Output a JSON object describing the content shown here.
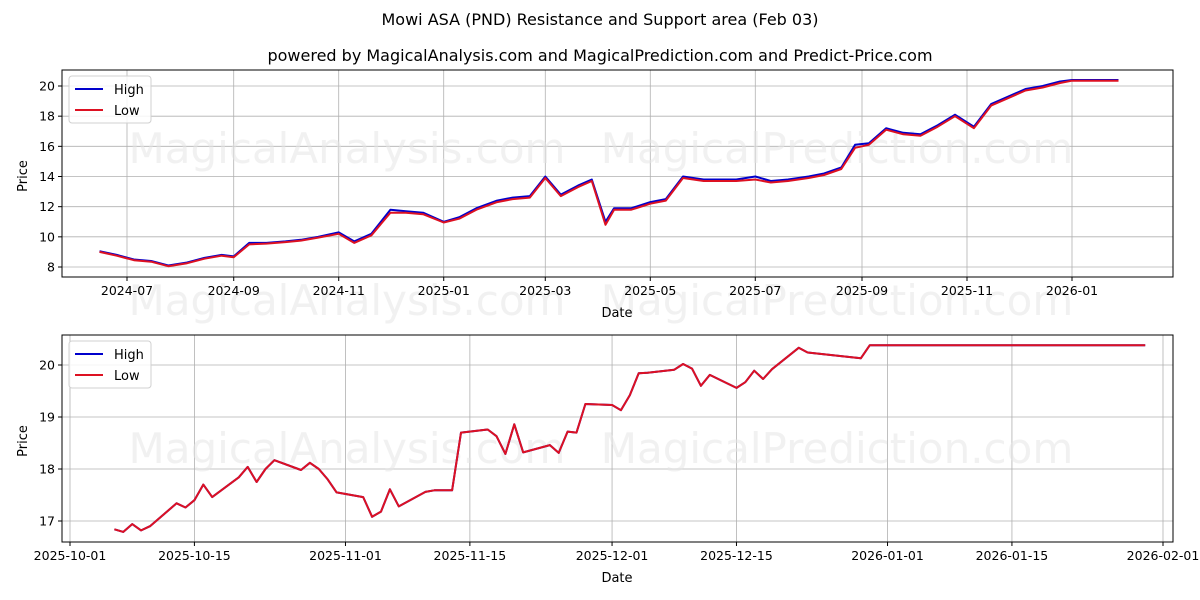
{
  "header": {
    "title": "Mowi ASA (PND) Resistance and Support area (Feb 03)",
    "subtitle": "powered by MagicalAnalysis.com and MagicalPrediction.com and Predict-Price.com"
  },
  "watermarks": [
    "MagicalAnalysis.com",
    "MagicalPrediction.com"
  ],
  "colors": {
    "high": "#0000cc",
    "low": "#dd1122",
    "grid": "#b0b0b0"
  },
  "chart_data": [
    {
      "type": "line",
      "title": "Mowi ASA (PND) Resistance and Support area (Feb 03)",
      "xlabel": "Date",
      "ylabel": "Price",
      "ylim": [
        7.3,
        21.0
      ],
      "grid": true,
      "legend_position": "upper left",
      "legend": [
        "High",
        "Low"
      ],
      "x_tick_labels": [
        "2024-07",
        "2024-09",
        "2024-11",
        "2025-01",
        "2025-03",
        "2025-05",
        "2025-07",
        "2025-09",
        "2025-11",
        "2026-01"
      ],
      "y_tick_labels": [
        "8",
        "10",
        "12",
        "14",
        "16",
        "18",
        "20"
      ],
      "x": [
        "2024-06-15",
        "2024-06-25",
        "2024-07-05",
        "2024-07-15",
        "2024-07-25",
        "2024-08-05",
        "2024-08-15",
        "2024-08-25",
        "2024-09-01",
        "2024-09-10",
        "2024-09-20",
        "2024-10-01",
        "2024-10-10",
        "2024-10-20",
        "2024-11-01",
        "2024-11-10",
        "2024-11-20",
        "2024-12-01",
        "2024-12-10",
        "2024-12-20",
        "2025-01-01",
        "2025-01-10",
        "2025-01-20",
        "2025-02-01",
        "2025-02-10",
        "2025-02-20",
        "2025-03-01",
        "2025-03-10",
        "2025-03-20",
        "2025-03-28",
        "2025-04-05",
        "2025-04-10",
        "2025-04-20",
        "2025-05-01",
        "2025-05-10",
        "2025-05-20",
        "2025-06-01",
        "2025-06-10",
        "2025-06-20",
        "2025-07-01",
        "2025-07-10",
        "2025-07-20",
        "2025-08-01",
        "2025-08-10",
        "2025-08-20",
        "2025-08-28",
        "2025-09-05",
        "2025-09-15",
        "2025-09-25",
        "2025-10-05",
        "2025-10-15",
        "2025-10-25",
        "2025-11-05",
        "2025-11-15",
        "2025-11-25",
        "2025-12-05",
        "2025-12-15",
        "2025-12-25",
        "2026-01-01",
        "2026-01-15",
        "2026-01-28"
      ],
      "series": [
        {
          "name": "High",
          "color": "#0000cc",
          "values": [
            9.05,
            8.8,
            8.5,
            8.4,
            8.1,
            8.3,
            8.6,
            8.8,
            8.7,
            9.6,
            9.6,
            9.7,
            9.8,
            10.0,
            10.3,
            9.7,
            10.2,
            11.8,
            11.7,
            11.6,
            11.0,
            11.3,
            11.9,
            12.4,
            12.6,
            12.7,
            14.0,
            12.8,
            13.4,
            13.8,
            11.0,
            11.9,
            11.9,
            12.3,
            12.5,
            14.0,
            13.8,
            13.8,
            13.8,
            14.0,
            13.7,
            13.8,
            14.0,
            14.2,
            14.6,
            16.1,
            16.2,
            17.2,
            16.9,
            16.8,
            17.4,
            18.1,
            17.3,
            18.8,
            19.3,
            19.8,
            20.0,
            20.3,
            20.4,
            20.4,
            20.4
          ]
        },
        {
          "name": "Low",
          "color": "#dd1122",
          "values": [
            9.0,
            8.75,
            8.45,
            8.35,
            8.05,
            8.25,
            8.55,
            8.75,
            8.65,
            9.5,
            9.55,
            9.65,
            9.75,
            9.95,
            10.2,
            9.6,
            10.1,
            11.6,
            11.6,
            11.5,
            10.95,
            11.2,
            11.8,
            12.3,
            12.5,
            12.6,
            13.9,
            12.7,
            13.3,
            13.7,
            10.8,
            11.8,
            11.8,
            12.2,
            12.4,
            13.9,
            13.7,
            13.7,
            13.7,
            13.8,
            13.6,
            13.7,
            13.9,
            14.1,
            14.5,
            15.9,
            16.1,
            17.1,
            16.8,
            16.7,
            17.3,
            18.0,
            17.2,
            18.7,
            19.2,
            19.7,
            19.9,
            20.2,
            20.35,
            20.35,
            20.35
          ]
        }
      ]
    },
    {
      "type": "line",
      "xlabel": "Date",
      "ylabel": "Price",
      "ylim": [
        16.6,
        20.55
      ],
      "grid": true,
      "legend_position": "upper left",
      "legend": [
        "High",
        "Low"
      ],
      "x_tick_labels": [
        "2025-10-01",
        "2025-10-15",
        "2025-11-01",
        "2025-11-15",
        "2025-12-01",
        "2025-12-15",
        "2026-01-01",
        "2026-01-15",
        "2026-02-01"
      ],
      "y_tick_labels": [
        "17",
        "18",
        "19",
        "20"
      ],
      "x": [
        "2025-10-06",
        "2025-10-07",
        "2025-10-08",
        "2025-10-09",
        "2025-10-10",
        "2025-10-13",
        "2025-10-14",
        "2025-10-15",
        "2025-10-16",
        "2025-10-17",
        "2025-10-20",
        "2025-10-21",
        "2025-10-22",
        "2025-10-23",
        "2025-10-24",
        "2025-10-27",
        "2025-10-28",
        "2025-10-29",
        "2025-10-30",
        "2025-10-31",
        "2025-11-03",
        "2025-11-04",
        "2025-11-05",
        "2025-11-06",
        "2025-11-07",
        "2025-11-10",
        "2025-11-11",
        "2025-11-12",
        "2025-11-13",
        "2025-11-14",
        "2025-11-17",
        "2025-11-18",
        "2025-11-19",
        "2025-11-20",
        "2025-11-21",
        "2025-11-24",
        "2025-11-25",
        "2025-11-26",
        "2025-11-27",
        "2025-11-28",
        "2025-12-01",
        "2025-12-02",
        "2025-12-03",
        "2025-12-04",
        "2025-12-05",
        "2025-12-08",
        "2025-12-09",
        "2025-12-10",
        "2025-12-11",
        "2025-12-12",
        "2025-12-15",
        "2025-12-16",
        "2025-12-17",
        "2025-12-18",
        "2025-12-19",
        "2025-12-22",
        "2025-12-23",
        "2025-12-29",
        "2025-12-30",
        "2026-01-30"
      ],
      "series": [
        {
          "name": "High",
          "color": "#0000cc",
          "values": [
            16.84,
            16.79,
            16.94,
            16.82,
            16.9,
            17.34,
            17.26,
            17.4,
            17.7,
            17.46,
            17.84,
            18.04,
            17.75,
            18.0,
            18.17,
            17.98,
            18.12,
            18.0,
            17.8,
            17.55,
            17.46,
            17.08,
            17.18,
            17.61,
            17.28,
            17.56,
            17.59,
            17.59,
            17.59,
            18.7,
            18.76,
            18.63,
            18.29,
            18.86,
            18.32,
            18.46,
            18.31,
            18.72,
            18.7,
            19.25,
            19.23,
            19.13,
            19.42,
            19.84,
            19.85,
            19.91,
            20.02,
            19.93,
            19.6,
            19.81,
            19.56,
            19.67,
            19.89,
            19.73,
            19.92,
            20.33,
            20.24,
            20.13,
            20.38,
            20.38
          ]
        },
        {
          "name": "Low",
          "color": "#dd1122",
          "values": [
            16.84,
            16.79,
            16.94,
            16.82,
            16.9,
            17.34,
            17.26,
            17.4,
            17.7,
            17.46,
            17.84,
            18.04,
            17.75,
            18.0,
            18.17,
            17.98,
            18.12,
            18.0,
            17.8,
            17.55,
            17.46,
            17.08,
            17.18,
            17.61,
            17.28,
            17.56,
            17.59,
            17.59,
            17.59,
            18.7,
            18.76,
            18.63,
            18.29,
            18.86,
            18.32,
            18.46,
            18.31,
            18.72,
            18.7,
            19.25,
            19.23,
            19.13,
            19.42,
            19.84,
            19.85,
            19.91,
            20.02,
            19.93,
            19.6,
            19.81,
            19.56,
            19.67,
            19.89,
            19.73,
            19.92,
            20.33,
            20.24,
            20.13,
            20.38,
            20.38
          ]
        }
      ]
    }
  ]
}
